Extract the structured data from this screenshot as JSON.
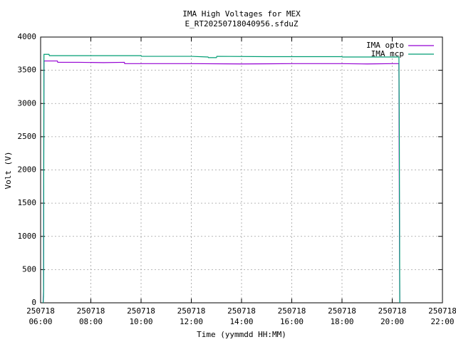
{
  "chart_data": {
    "type": "line",
    "title": "IMA High Voltages for MEX",
    "subtitle": "E_RT20250718040956.sfduZ",
    "x_label": "Time (yymmdd HH:MM)",
    "y_label": "Volt (V)",
    "xlim": [
      "06:00",
      "22:00"
    ],
    "xticks": [
      {
        "value": "06:00",
        "label": "250718\n06:00"
      },
      {
        "value": "08:00",
        "label": "250718\n08:00"
      },
      {
        "value": "10:00",
        "label": "250718\n10:00"
      },
      {
        "value": "12:00",
        "label": "250718\n12:00"
      },
      {
        "value": "14:00",
        "label": "250718\n14:00"
      },
      {
        "value": "16:00",
        "label": "250718\n16:00"
      },
      {
        "value": "18:00",
        "label": "250718\n18:00"
      },
      {
        "value": "20:00",
        "label": "250718\n20:00"
      },
      {
        "value": "22:00",
        "label": "250718\n22:00"
      }
    ],
    "ylim": [
      0,
      4000
    ],
    "yticks": [
      0,
      500,
      1000,
      1500,
      2000,
      2500,
      3000,
      3500,
      4000
    ],
    "grid": true,
    "legend": "top-right",
    "series": [
      {
        "name": "IMA opto",
        "color": "#9400d3",
        "x": [
          "06:06",
          "06:07",
          "06:08",
          "06:10",
          "06:40",
          "06:41",
          "07:30",
          "08:30",
          "09:20",
          "09:21",
          "10:30",
          "12:00",
          "14:00",
          "16:00",
          "18:00",
          "19:00",
          "20:00",
          "20:16",
          "20:17",
          "20:18"
        ],
        "values": [
          0,
          180,
          3640,
          3640,
          3640,
          3620,
          3620,
          3615,
          3620,
          3600,
          3600,
          3600,
          3595,
          3600,
          3600,
          3595,
          3600,
          3600,
          1500,
          0
        ]
      },
      {
        "name": "IMA mcp",
        "color": "#009e73",
        "x": [
          "06:06",
          "06:07",
          "06:08",
          "06:20",
          "06:21",
          "08:00",
          "10:00",
          "10:01",
          "12:00",
          "12:40",
          "12:41",
          "13:00",
          "13:01",
          "15:00",
          "18:00",
          "18:01",
          "20:00",
          "20:16",
          "20:17",
          "20:18"
        ],
        "values": [
          0,
          100,
          3740,
          3740,
          3720,
          3720,
          3720,
          3710,
          3710,
          3700,
          3690,
          3690,
          3710,
          3705,
          3705,
          3700,
          3700,
          3700,
          2500,
          0
        ]
      }
    ]
  }
}
